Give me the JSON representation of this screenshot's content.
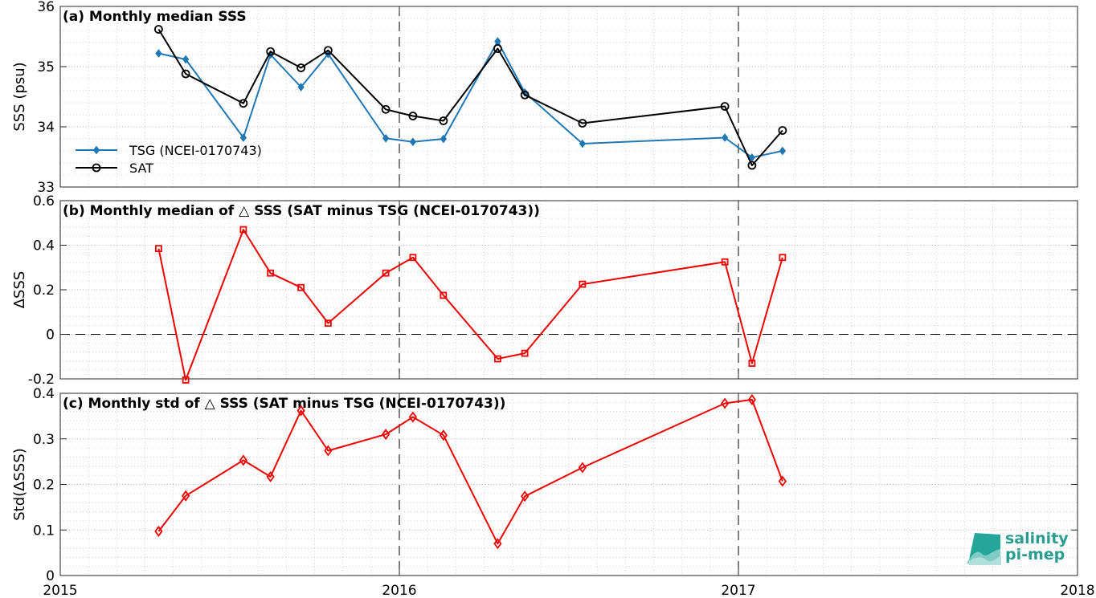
{
  "chart_data": [
    {
      "type": "line",
      "title": "(a) Monthly median SSS",
      "xlabel": "",
      "ylabel": "SSS (psu)",
      "xlim": [
        2015,
        2018
      ],
      "ylim": [
        33,
        36
      ],
      "yticks": [
        "33",
        "34",
        "35",
        "36"
      ],
      "grid": true,
      "legend_position": "bottom-left",
      "series": [
        {
          "name": "TSG (NCEI-0170743)",
          "color": "#1f77b4",
          "marker": "diamond",
          "x": [
            2015.29,
            2015.37,
            2015.54,
            2015.62,
            2015.71,
            2015.79,
            2015.96,
            2016.04,
            2016.13,
            2016.29,
            2016.37,
            2016.54,
            2016.96,
            2017.04,
            2017.13
          ],
          "values": [
            35.22,
            35.12,
            33.82,
            35.2,
            34.66,
            35.21,
            33.81,
            33.75,
            33.8,
            35.42,
            34.57,
            33.72,
            33.82,
            33.49,
            33.6
          ]
        },
        {
          "name": "SAT",
          "color": "#000000",
          "marker": "circle",
          "x": [
            2015.29,
            2015.37,
            2015.54,
            2015.62,
            2015.71,
            2015.79,
            2015.96,
            2016.04,
            2016.13,
            2016.29,
            2016.37,
            2016.54,
            2016.96,
            2017.04,
            2017.13
          ],
          "values": [
            35.62,
            34.88,
            34.39,
            35.25,
            34.98,
            35.27,
            34.29,
            34.18,
            34.1,
            35.3,
            34.53,
            34.06,
            34.34,
            33.36,
            33.94
          ]
        }
      ]
    },
    {
      "type": "line",
      "title": "(b) Monthly median of △ SSS (SAT minus TSG (NCEI-0170743))",
      "xlabel": "",
      "ylabel": "ΔSSS",
      "xlim": [
        2015,
        2018
      ],
      "ylim": [
        -0.2,
        0.6
      ],
      "yticks": [
        "-0.2",
        "0",
        "0.2",
        "0.4",
        "0.6"
      ],
      "grid": true,
      "series": [
        {
          "color": "#ee0000",
          "marker": "square",
          "x": [
            2015.29,
            2015.37,
            2015.54,
            2015.62,
            2015.71,
            2015.79,
            2015.96,
            2016.04,
            2016.13,
            2016.29,
            2016.37,
            2016.54,
            2016.96,
            2017.04,
            2017.13
          ],
          "values": [
            0.385,
            -0.205,
            0.47,
            0.275,
            0.21,
            0.05,
            0.275,
            0.345,
            0.175,
            -0.11,
            -0.085,
            0.225,
            0.325,
            -0.13,
            0.345
          ]
        }
      ]
    },
    {
      "type": "line",
      "title": "(c) Monthly std of △ SSS (SAT minus TSG (NCEI-0170743))",
      "xlabel": "",
      "ylabel": "Std(ΔSSS)",
      "xlim": [
        2015,
        2018
      ],
      "ylim": [
        0,
        0.4
      ],
      "yticks": [
        "0",
        "0.1",
        "0.2",
        "0.3",
        "0.4"
      ],
      "xticks": [
        "2015",
        "2016",
        "2017",
        "2018"
      ],
      "grid": true,
      "series": [
        {
          "color": "#ee0000",
          "marker": "diamond-open",
          "x": [
            2015.29,
            2015.37,
            2015.54,
            2015.62,
            2015.71,
            2015.79,
            2015.96,
            2016.04,
            2016.13,
            2016.29,
            2016.37,
            2016.54,
            2016.96,
            2017.04,
            2017.13
          ],
          "values": [
            0.097,
            0.175,
            0.253,
            0.217,
            0.362,
            0.274,
            0.31,
            0.348,
            0.308,
            0.07,
            0.174,
            0.237,
            0.378,
            0.386,
            0.207
          ]
        }
      ]
    }
  ],
  "logo": {
    "line1": "salinity",
    "line2": "pi-mep"
  }
}
